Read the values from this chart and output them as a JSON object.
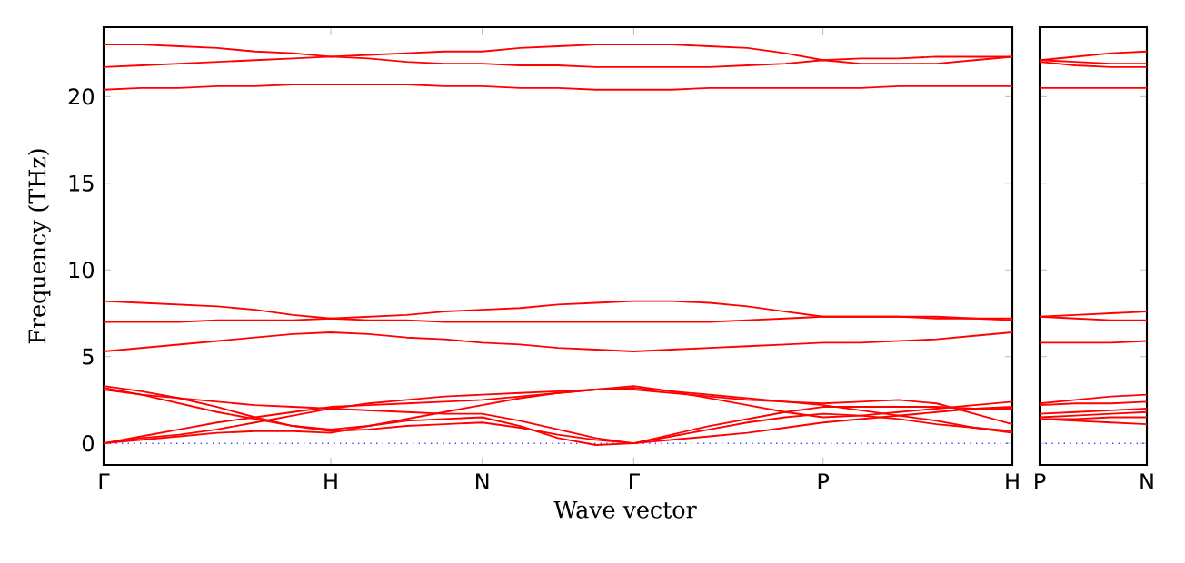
{
  "chart_data": [
    {
      "type": "line",
      "xlabel": "Wave vector",
      "ylabel": "Frequency (THz)",
      "categories": [
        "Γ",
        null,
        null,
        null,
        null,
        null,
        "H",
        null,
        null,
        null,
        "N",
        null,
        null,
        null,
        "Γ",
        null,
        null,
        null,
        null,
        "P",
        null,
        null,
        null,
        null,
        "H"
      ],
      "ylim": [
        -1.25,
        24
      ],
      "yticks": [
        0,
        5,
        10,
        15,
        20
      ],
      "ref_lines": [
        {
          "axis": "y",
          "value": 0,
          "color": "#0000ff",
          "line_style": "dotted"
        }
      ],
      "series": [
        {
          "color": "#ff0000",
          "values": [
            23.0,
            23.0,
            22.9,
            22.8,
            22.6,
            22.5,
            22.3,
            22.4,
            22.5,
            22.6,
            22.6,
            22.8,
            22.9,
            23.0,
            23.0,
            23.0,
            22.9,
            22.8,
            22.5,
            22.1,
            22.2,
            22.2,
            22.3,
            22.3,
            22.3
          ]
        },
        {
          "color": "#ff0000",
          "values": [
            21.7,
            21.8,
            21.9,
            22.0,
            22.1,
            22.2,
            22.3,
            22.2,
            22.0,
            21.9,
            21.9,
            21.8,
            21.8,
            21.7,
            21.7,
            21.7,
            21.7,
            21.8,
            21.9,
            22.1,
            21.9,
            21.9,
            21.9,
            22.1,
            22.3
          ]
        },
        {
          "color": "#ff0000",
          "values": [
            20.4,
            20.5,
            20.5,
            20.6,
            20.6,
            20.7,
            20.7,
            20.7,
            20.7,
            20.6,
            20.6,
            20.5,
            20.5,
            20.4,
            20.4,
            20.4,
            20.5,
            20.5,
            20.5,
            20.5,
            20.5,
            20.6,
            20.6,
            20.6,
            20.6
          ]
        },
        {
          "color": "#ff0000",
          "values": [
            8.2,
            8.1,
            8.0,
            7.9,
            7.7,
            7.4,
            7.2,
            7.3,
            7.4,
            7.6,
            7.7,
            7.8,
            8.0,
            8.1,
            8.2,
            8.2,
            8.1,
            7.9,
            7.6,
            7.3,
            7.3,
            7.3,
            7.3,
            7.2,
            7.2
          ]
        },
        {
          "color": "#ff0000",
          "values": [
            7.0,
            7.0,
            7.0,
            7.1,
            7.1,
            7.1,
            7.2,
            7.1,
            7.1,
            7.0,
            7.0,
            7.0,
            7.0,
            7.0,
            7.0,
            7.0,
            7.0,
            7.1,
            7.2,
            7.3,
            7.3,
            7.3,
            7.2,
            7.2,
            7.1
          ]
        },
        {
          "color": "#ff0000",
          "values": [
            5.3,
            5.5,
            5.7,
            5.9,
            6.1,
            6.3,
            6.4,
            6.3,
            6.1,
            6.0,
            5.8,
            5.7,
            5.5,
            5.4,
            5.3,
            5.4,
            5.5,
            5.6,
            5.7,
            5.8,
            5.8,
            5.9,
            6.0,
            6.2,
            6.4
          ]
        },
        {
          "color": "#ff0000",
          "values": [
            3.2,
            2.8,
            2.3,
            1.8,
            1.4,
            1.0,
            0.7,
            0.8,
            1.0,
            1.1,
            1.2,
            0.9,
            0.5,
            0.2,
            0,
            0.4,
            0.8,
            1.2,
            1.5,
            1.7,
            1.6,
            1.4,
            1.1,
            0.9,
            0.7
          ]
        },
        {
          "color": "#ff0000",
          "values": [
            3.1,
            2.8,
            2.6,
            2.4,
            2.2,
            2.1,
            2.0,
            2.3,
            2.5,
            2.7,
            2.8,
            2.9,
            3.0,
            3.1,
            3.1,
            2.9,
            2.7,
            2.5,
            2.4,
            2.3,
            2.4,
            2.5,
            2.3,
            1.7,
            1.1
          ]
        },
        {
          "color": "#ff0000",
          "values": [
            3.3,
            3.0,
            2.6,
            2.1,
            1.5,
            1.0,
            0.8,
            1.0,
            1.3,
            1.4,
            1.5,
            1.0,
            0.3,
            -0.1,
            0,
            0.2,
            0.4,
            0.6,
            0.9,
            1.2,
            1.4,
            1.6,
            1.8,
            2.0,
            2.1
          ]
        },
        {
          "color": "#ff0000",
          "values": [
            0,
            0.4,
            0.8,
            1.2,
            1.5,
            1.8,
            2.1,
            2.2,
            2.3,
            2.4,
            2.5,
            2.7,
            2.9,
            3.1,
            3.2,
            3.0,
            2.8,
            2.6,
            2.4,
            2.2,
            1.9,
            1.6,
            1.3,
            0.9,
            0.6
          ]
        },
        {
          "color": "#ff0000",
          "values": [
            0,
            0.3,
            0.5,
            0.8,
            1.2,
            1.6,
            2.0,
            1.9,
            1.8,
            1.7,
            1.7,
            1.3,
            0.8,
            0.3,
            0,
            0.5,
            1.0,
            1.4,
            1.8,
            2.1,
            2.1,
            2.1,
            2.1,
            2.0,
            2.0
          ]
        },
        {
          "color": "#ff0000",
          "values": [
            0,
            0.2,
            0.4,
            0.6,
            0.7,
            0.7,
            0.6,
            1.0,
            1.4,
            1.8,
            2.2,
            2.6,
            2.9,
            3.1,
            3.3,
            3.0,
            2.6,
            2.2,
            1.8,
            1.5,
            1.6,
            1.8,
            2.0,
            2.2,
            2.4
          ]
        }
      ]
    },
    {
      "type": "line",
      "tick_labels": "x",
      "categories": [
        "P",
        null,
        null,
        "N"
      ],
      "ylim": [
        -1.25,
        24
      ],
      "yticks": [
        0,
        5,
        10,
        15,
        20
      ],
      "ref_lines": [
        {
          "axis": "y",
          "value": 0,
          "color": "#0000ff",
          "line_style": "dotted"
        }
      ],
      "series": [
        {
          "color": "#ff0000",
          "values": [
            22.1,
            22.3,
            22.5,
            22.6
          ]
        },
        {
          "color": "#ff0000",
          "values": [
            22.1,
            22.0,
            21.9,
            21.9
          ]
        },
        {
          "color": "#ff0000",
          "values": [
            22.0,
            21.8,
            21.7,
            21.7
          ]
        },
        {
          "color": "#ff0000",
          "values": [
            20.5,
            20.5,
            20.5,
            20.5
          ]
        },
        {
          "color": "#ff0000",
          "values": [
            7.3,
            7.4,
            7.5,
            7.6
          ]
        },
        {
          "color": "#ff0000",
          "values": [
            7.3,
            7.2,
            7.1,
            7.1
          ]
        },
        {
          "color": "#ff0000",
          "values": [
            5.8,
            5.8,
            5.8,
            5.9
          ]
        },
        {
          "color": "#ff0000",
          "values": [
            2.3,
            2.5,
            2.7,
            2.8
          ]
        },
        {
          "color": "#ff0000",
          "values": [
            2.2,
            2.3,
            2.3,
            2.4
          ]
        },
        {
          "color": "#ff0000",
          "values": [
            1.7,
            1.8,
            1.9,
            2.0
          ]
        },
        {
          "color": "#ff0000",
          "values": [
            1.5,
            1.6,
            1.7,
            1.8
          ]
        },
        {
          "color": "#ff0000",
          "values": [
            1.4,
            1.4,
            1.5,
            1.5
          ]
        },
        {
          "color": "#ff0000",
          "values": [
            1.4,
            1.3,
            1.2,
            1.1
          ]
        }
      ]
    }
  ]
}
